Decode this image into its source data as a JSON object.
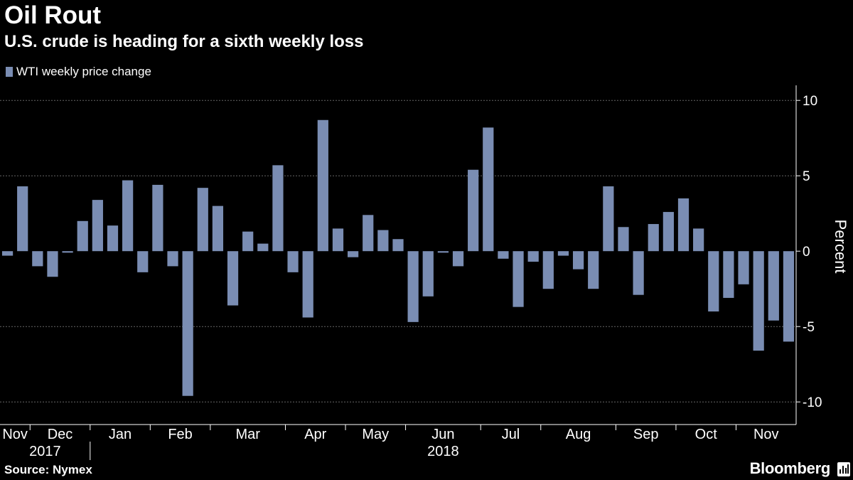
{
  "title": "Oil Rout",
  "subtitle": "U.S. crude is heading for a sixth weekly loss",
  "source": "Source: Nymex",
  "brand": "Bloomberg",
  "brand_icon": "bloomberg-terminal-icon",
  "colors": {
    "bar": "#7a8db3",
    "background": "#000000",
    "text": "#ffffff",
    "grid": "#666666"
  },
  "chart_data": {
    "type": "bar",
    "ylabel": "Percent",
    "ylim": [
      -11.5,
      11
    ],
    "yticks": [
      10,
      5,
      0,
      -5,
      -10
    ],
    "grid": true,
    "legend_position": "top-left",
    "series": [
      {
        "name": "WTI weekly price change",
        "values": [
          -0.3,
          4.3,
          -1.0,
          -1.7,
          -0.1,
          2.0,
          3.4,
          1.7,
          4.7,
          -1.4,
          4.4,
          -1.0,
          -9.6,
          4.2,
          3.0,
          -3.6,
          1.3,
          0.5,
          5.7,
          -1.4,
          -4.4,
          8.7,
          1.5,
          -0.4,
          2.4,
          1.4,
          0.8,
          -4.7,
          -3.0,
          -0.1,
          -1.0,
          5.4,
          8.2,
          -0.5,
          -3.7,
          -0.7,
          -2.5,
          -0.3,
          -1.2,
          -2.5,
          4.3,
          1.6,
          -2.9,
          1.8,
          2.6,
          3.5,
          1.5,
          -4.0,
          -3.1,
          -2.2,
          -6.6,
          -4.6,
          -6.0
        ]
      }
    ],
    "months": [
      {
        "label": "Nov",
        "start": 0,
        "end": 2
      },
      {
        "label": "Dec",
        "start": 2,
        "end": 6
      },
      {
        "label": "Jan",
        "start": 6,
        "end": 10
      },
      {
        "label": "Feb",
        "start": 10,
        "end": 14
      },
      {
        "label": "Mar",
        "start": 14,
        "end": 19
      },
      {
        "label": "Apr",
        "start": 19,
        "end": 23
      },
      {
        "label": "May",
        "start": 23,
        "end": 27
      },
      {
        "label": "Jun",
        "start": 27,
        "end": 32
      },
      {
        "label": "Jul",
        "start": 32,
        "end": 36
      },
      {
        "label": "Aug",
        "start": 36,
        "end": 41
      },
      {
        "label": "Sep",
        "start": 41,
        "end": 45
      },
      {
        "label": "Oct",
        "start": 45,
        "end": 49
      },
      {
        "label": "Nov",
        "start": 49,
        "end": 53
      }
    ],
    "years": [
      {
        "label": "2017",
        "start": 0,
        "end": 6
      },
      {
        "label": "2018",
        "start": 6,
        "end": 53
      }
    ]
  }
}
